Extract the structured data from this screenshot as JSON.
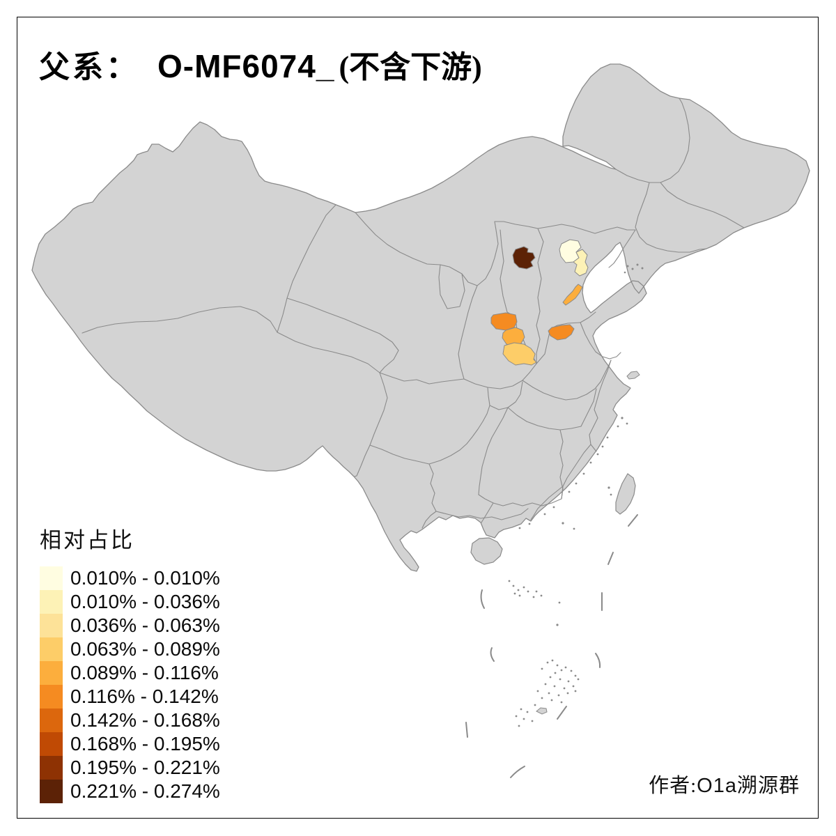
{
  "title": {
    "prefix": "父系：",
    "haplogroup": "O-MF6074_",
    "suffix": "(不含下游)",
    "full": "父系： O-MF6074_ (不含下游)"
  },
  "legend": {
    "title": "相对占比",
    "classes": [
      {
        "label": "0.010% - 0.010%",
        "color": "#FFFDE1"
      },
      {
        "label": "0.010% - 0.036%",
        "color": "#FDF2B6"
      },
      {
        "label": "0.036% - 0.063%",
        "color": "#FDE298"
      },
      {
        "label": "0.063% - 0.089%",
        "color": "#FDCD68"
      },
      {
        "label": "0.089% - 0.116%",
        "color": "#FCAE3D"
      },
      {
        "label": "0.116% - 0.142%",
        "color": "#F58B21"
      },
      {
        "label": "0.142% - 0.168%",
        "color": "#DC670D"
      },
      {
        "label": "0.168% - 0.195%",
        "color": "#C04A04"
      },
      {
        "label": "0.195% - 0.221%",
        "color": "#8E3203"
      },
      {
        "label": "0.221% - 0.274%",
        "color": "#5C2206"
      }
    ]
  },
  "attribution": {
    "prefix": "作者:",
    "name": "O1a",
    "suffix": "溯源群",
    "full": "作者:O1a溯源群"
  },
  "map": {
    "land_fill": "#D3D3D3",
    "border_color": "#8A8A8A",
    "sea_color": "#FFFFFF",
    "regions": [
      {
        "id": "north-shanxi",
        "class_index": 9,
        "value_range": "0.221% - 0.274%"
      },
      {
        "id": "beijing",
        "class_index": 0,
        "value_range": "0.010% - 0.010%"
      },
      {
        "id": "tianjin-area",
        "class_index": 1,
        "value_range": "0.010% - 0.036%"
      },
      {
        "id": "coastal-hebei",
        "class_index": 4,
        "value_range": "0.089% - 0.116%"
      },
      {
        "id": "north-shaanxi",
        "class_index": 5,
        "value_range": "0.116% - 0.142%"
      },
      {
        "id": "central-shaanxi",
        "class_index": 4,
        "value_range": "0.089% - 0.116%"
      },
      {
        "id": "guanzhong-shaanxi",
        "class_index": 3,
        "value_range": "0.063% - 0.089%"
      },
      {
        "id": "north-henan",
        "class_index": 5,
        "value_range": "0.116% - 0.142%"
      }
    ]
  },
  "chart_data": {
    "type": "choropleth-map",
    "title": "父系： O-MF6074_ (不含下游)",
    "legend_title": "相对占比",
    "bins": [
      "0.010% - 0.010%",
      "0.010% - 0.036%",
      "0.036% - 0.063%",
      "0.063% - 0.089%",
      "0.089% - 0.116%",
      "0.116% - 0.142%",
      "0.142% - 0.168%",
      "0.168% - 0.195%",
      "0.195% - 0.221%",
      "0.221% - 0.274%"
    ],
    "regions": [
      {
        "region": "north-shanxi",
        "bin": "0.221% - 0.274%"
      },
      {
        "region": "beijing",
        "bin": "0.010% - 0.010%"
      },
      {
        "region": "tianjin-area",
        "bin": "0.010% - 0.036%"
      },
      {
        "region": "coastal-hebei",
        "bin": "0.089% - 0.116%"
      },
      {
        "region": "north-shaanxi",
        "bin": "0.116% - 0.142%"
      },
      {
        "region": "central-shaanxi",
        "bin": "0.089% - 0.116%"
      },
      {
        "region": "guanzhong-shaanxi",
        "bin": "0.063% - 0.089%"
      },
      {
        "region": "north-henan",
        "bin": "0.116% - 0.142%"
      }
    ],
    "no_data_fill": "#D3D3D3",
    "legend_position": "bottom-left"
  }
}
